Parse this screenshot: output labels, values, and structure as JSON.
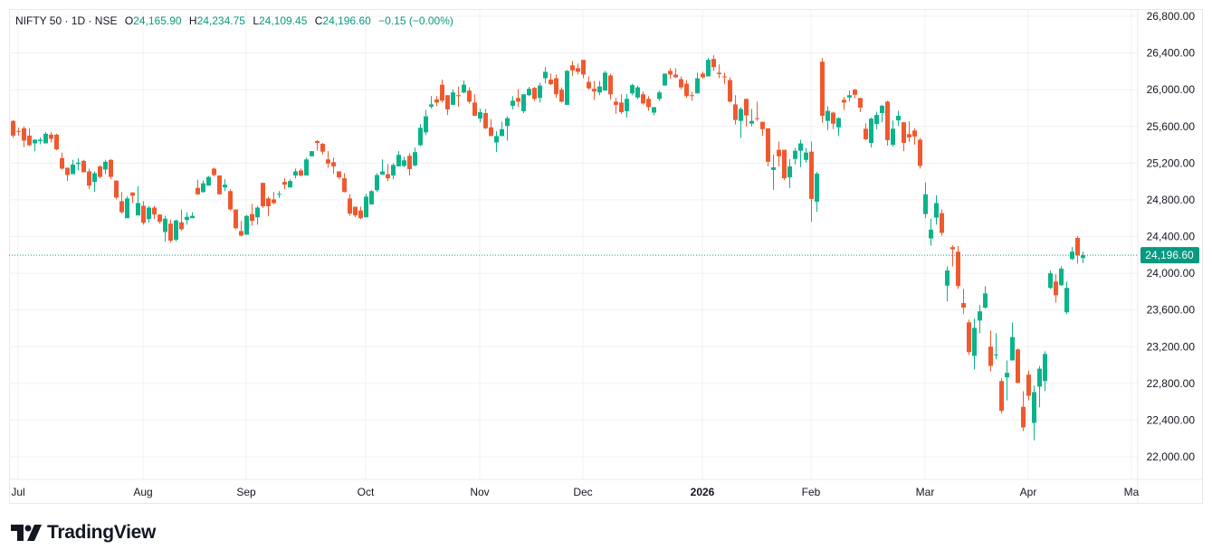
{
  "legend": {
    "symbol": "NIFTY 50 · 1D · NSE",
    "open_label": "O",
    "open": "24,165.90",
    "high_label": "H",
    "high": "24,234.75",
    "low_label": "L",
    "low": "24,109.45",
    "close_label": "C",
    "close": "24,196.60",
    "change": "−0.15 (−0.00%)"
  },
  "last_price_label": "24,196.60",
  "brand": "TradingView",
  "colors": {
    "up": "#0bb38a",
    "down": "#f0592f",
    "grid": "#f0f0f2",
    "text": "#131722"
  },
  "chart_data": {
    "type": "candlestick",
    "title": "NIFTY 50 · 1D · NSE",
    "ylim": [
      21900,
      26900
    ],
    "y_ticks": [
      "26,800.00",
      "26,400.00",
      "26,000.00",
      "25,600.00",
      "25,200.00",
      "24,800.00",
      "24,400.00",
      "24,000.00",
      "23,600.00",
      "23,200.00",
      "22,800.00",
      "22,400.00",
      "22,000.00"
    ],
    "y_tick_values": [
      26800,
      26400,
      26000,
      25600,
      25200,
      24800,
      24400,
      24000,
      23600,
      23200,
      22800,
      22400,
      22000
    ],
    "x_ticks": [
      {
        "label": "Jul",
        "bar": 1
      },
      {
        "label": "Aug",
        "bar": 24
      },
      {
        "label": "Sep",
        "bar": 43
      },
      {
        "label": "Oct",
        "bar": 65
      },
      {
        "label": "Nov",
        "bar": 86
      },
      {
        "label": "Dec",
        "bar": 105
      },
      {
        "label": "2026",
        "bar": 127
      },
      {
        "label": "Feb",
        "bar": 147
      },
      {
        "label": "Mar",
        "bar": 168
      },
      {
        "label": "Apr",
        "bar": 187
      },
      {
        "label": "Ma",
        "bar": 206
      }
    ],
    "last_price": 24196.6,
    "ohlc_fields": [
      "open",
      "high",
      "low",
      "close"
    ],
    "candles": [
      [
        25660,
        25670,
        25475,
        25500
      ],
      [
        25550,
        25585,
        25500,
        25545
      ],
      [
        25580,
        25600,
        25375,
        25445
      ],
      [
        25500,
        25580,
        25385,
        25395
      ],
      [
        25415,
        25460,
        25330,
        25455
      ],
      [
        25440,
        25480,
        25405,
        25455
      ],
      [
        25415,
        25540,
        25415,
        25520
      ],
      [
        25510,
        25540,
        25425,
        25465
      ],
      [
        25510,
        25520,
        25340,
        25350
      ],
      [
        25255,
        25315,
        25130,
        25140
      ],
      [
        25150,
        25150,
        25005,
        25070
      ],
      [
        25080,
        25235,
        25080,
        25185
      ],
      [
        25190,
        25255,
        25120,
        25205
      ],
      [
        25225,
        25235,
        25100,
        25100
      ],
      [
        25110,
        25140,
        24915,
        24955
      ],
      [
        24995,
        25110,
        24885,
        25090
      ],
      [
        25165,
        25175,
        25035,
        25050
      ],
      [
        25130,
        25235,
        25080,
        25215
      ],
      [
        25235,
        25245,
        25025,
        25050
      ],
      [
        25010,
        25010,
        24805,
        24825
      ],
      [
        24785,
        24885,
        24650,
        24665
      ],
      [
        24600,
        24840,
        24600,
        24815
      ],
      [
        24880,
        24880,
        24765,
        24845
      ],
      [
        24630,
        24950,
        24630,
        24765
      ],
      [
        24735,
        24785,
        24530,
        24550
      ],
      [
        24590,
        24735,
        24550,
        24715
      ],
      [
        24715,
        24735,
        24590,
        24640
      ],
      [
        24640,
        24640,
        24540,
        24560
      ],
      [
        24450,
        24625,
        24345,
        24595
      ],
      [
        24540,
        24585,
        24335,
        24355
      ],
      [
        24365,
        24585,
        24345,
        24575
      ],
      [
        24555,
        24695,
        24460,
        24480
      ],
      [
        24580,
        24665,
        24530,
        24615
      ],
      [
        24600,
        24665,
        24600,
        24625
      ],
      [
        24930,
        25020,
        24855,
        24860
      ],
      [
        24885,
        25010,
        24875,
        24980
      ],
      [
        24955,
        25060,
        24955,
        25050
      ],
      [
        25140,
        25150,
        25055,
        25070
      ],
      [
        25065,
        25065,
        24860,
        24860
      ],
      [
        24935,
        25025,
        24895,
        24965
      ],
      [
        24895,
        24915,
        24685,
        24695
      ],
      [
        24695,
        24695,
        24480,
        24490
      ],
      [
        24460,
        24570,
        24400,
        24410
      ],
      [
        24420,
        24635,
        24420,
        24625
      ],
      [
        24645,
        24755,
        24520,
        24570
      ],
      [
        24610,
        24735,
        24530,
        24715
      ],
      [
        24985,
        24985,
        24710,
        24730
      ],
      [
        24815,
        24835,
        24620,
        24730
      ],
      [
        24805,
        24885,
        24750,
        24765
      ],
      [
        24860,
        24895,
        24820,
        24865
      ],
      [
        24995,
        25035,
        24915,
        24965
      ],
      [
        24935,
        25025,
        24935,
        25005
      ],
      [
        25065,
        25140,
        25035,
        25110
      ],
      [
        25120,
        25140,
        25055,
        25065
      ],
      [
        25065,
        25260,
        25065,
        25240
      ],
      [
        25275,
        25330,
        25275,
        25330
      ],
      [
        25440,
        25450,
        25335,
        25420
      ],
      [
        25410,
        25420,
        25295,
        25325
      ],
      [
        25240,
        25330,
        25150,
        25195
      ],
      [
        25210,
        25260,
        25085,
        25165
      ],
      [
        25110,
        25110,
        25025,
        25045
      ],
      [
        25035,
        25090,
        24880,
        24885
      ],
      [
        24815,
        24865,
        24625,
        24650
      ],
      [
        24725,
        24725,
        24610,
        24630
      ],
      [
        24685,
        24725,
        24590,
        24600
      ],
      [
        24610,
        24865,
        24610,
        24835
      ],
      [
        24750,
        24905,
        24750,
        24895
      ],
      [
        24905,
        25090,
        24885,
        25070
      ],
      [
        25075,
        25240,
        25075,
        25110
      ],
      [
        25080,
        25190,
        25005,
        25035
      ],
      [
        25065,
        25200,
        25025,
        25180
      ],
      [
        25165,
        25330,
        25165,
        25290
      ],
      [
        25170,
        25270,
        25155,
        25230
      ],
      [
        25280,
        25310,
        25065,
        25135
      ],
      [
        25175,
        25370,
        25165,
        25320
      ],
      [
        25395,
        25625,
        25385,
        25585
      ],
      [
        25535,
        25780,
        25505,
        25710
      ],
      [
        25815,
        25930,
        25795,
        25840
      ],
      [
        25895,
        25930,
        25820,
        25860
      ],
      [
        26055,
        26110,
        25860,
        25880
      ],
      [
        25940,
        25940,
        25725,
        25785
      ],
      [
        25835,
        26005,
        25835,
        25970
      ],
      [
        25940,
        26035,
        25815,
        25930
      ],
      [
        25970,
        26100,
        25960,
        26055
      ],
      [
        25990,
        26025,
        25850,
        25870
      ],
      [
        25860,
        25950,
        25715,
        25715
      ],
      [
        25685,
        25795,
        25645,
        25755
      ],
      [
        25745,
        25790,
        25570,
        25580
      ],
      [
        25590,
        25680,
        25495,
        25495
      ],
      [
        25425,
        25550,
        25320,
        25495
      ],
      [
        25495,
        25650,
        25495,
        25570
      ],
      [
        25605,
        25710,
        25445,
        25690
      ],
      [
        25825,
        25930,
        25785,
        25880
      ],
      [
        25910,
        26005,
        25815,
        25870
      ],
      [
        25765,
        25950,
        25745,
        25950
      ],
      [
        25940,
        26030,
        25930,
        26010
      ],
      [
        26020,
        26030,
        25880,
        25900
      ],
      [
        25910,
        26075,
        25860,
        26045
      ],
      [
        26125,
        26245,
        26070,
        26195
      ],
      [
        26110,
        26175,
        26050,
        26060
      ],
      [
        26125,
        26165,
        25910,
        25950
      ],
      [
        26000,
        26025,
        25860,
        25870
      ],
      [
        25835,
        26215,
        25835,
        26205
      ],
      [
        26265,
        26315,
        26150,
        26210
      ],
      [
        26235,
        26285,
        26165,
        26195
      ],
      [
        26325,
        26325,
        26125,
        26165
      ],
      [
        26085,
        26145,
        26000,
        26015
      ],
      [
        26010,
        26095,
        25890,
        25980
      ],
      [
        25970,
        26095,
        25940,
        26035
      ],
      [
        25990,
        26205,
        25990,
        26185
      ],
      [
        26155,
        26175,
        25890,
        25950
      ],
      [
        25870,
        25910,
        25735,
        25835
      ],
      [
        25860,
        25950,
        25735,
        25755
      ],
      [
        25765,
        25950,
        25695,
        25900
      ],
      [
        25960,
        26065,
        25940,
        26050
      ],
      [
        25915,
        26045,
        25900,
        26025
      ],
      [
        25950,
        25980,
        25835,
        25850
      ],
      [
        25900,
        25930,
        25770,
        25810
      ],
      [
        25750,
        25810,
        25720,
        25810
      ],
      [
        25900,
        25990,
        25880,
        25970
      ],
      [
        26045,
        26175,
        26045,
        26175
      ],
      [
        26205,
        26235,
        26120,
        26165
      ],
      [
        26165,
        26235,
        26125,
        26135
      ],
      [
        26115,
        26145,
        26005,
        26025
      ],
      [
        26065,
        26105,
        25910,
        25930
      ],
      [
        25940,
        25980,
        25880,
        25930
      ],
      [
        25960,
        26185,
        25960,
        26125
      ],
      [
        26175,
        26195,
        26120,
        26135
      ],
      [
        26145,
        26345,
        26145,
        26325
      ],
      [
        26335,
        26375,
        26205,
        26245
      ],
      [
        26185,
        26275,
        26125,
        26170
      ],
      [
        26145,
        26185,
        26065,
        26140
      ],
      [
        26105,
        26135,
        25860,
        25870
      ],
      [
        25840,
        25940,
        25620,
        25670
      ],
      [
        25660,
        25810,
        25475,
        25790
      ],
      [
        25900,
        25900,
        25600,
        25720
      ],
      [
        25630,
        25790,
        25600,
        25660
      ],
      [
        25690,
        25870,
        25660,
        25680
      ],
      [
        25650,
        25650,
        25495,
        25570
      ],
      [
        25580,
        25580,
        25165,
        25215
      ],
      [
        25125,
        25295,
        24910,
        25155
      ],
      [
        25345,
        25435,
        25165,
        25275
      ],
      [
        25345,
        25345,
        25015,
        25035
      ],
      [
        25045,
        25245,
        24930,
        25165
      ],
      [
        25245,
        25365,
        25185,
        25335
      ],
      [
        25335,
        25455,
        25155,
        25415
      ],
      [
        25235,
        25365,
        25205,
        25315
      ],
      [
        25325,
        25435,
        24560,
        24810
      ],
      [
        24780,
        25105,
        24670,
        25085
      ],
      [
        26305,
        26345,
        25640,
        25715
      ],
      [
        25660,
        25820,
        25560,
        25770
      ],
      [
        25750,
        25760,
        25570,
        25630
      ],
      [
        25590,
        25700,
        25495,
        25690
      ],
      [
        25890,
        25920,
        25780,
        25860
      ],
      [
        25915,
        25990,
        25875,
        25940
      ],
      [
        26000,
        26010,
        25905,
        25945
      ],
      [
        25910,
        25910,
        25755,
        25805
      ],
      [
        25575,
        25635,
        25450,
        25460
      ],
      [
        25420,
        25695,
        25370,
        25685
      ],
      [
        25625,
        25760,
        25570,
        25725
      ],
      [
        25745,
        25835,
        25645,
        25825
      ],
      [
        25870,
        25880,
        25390,
        25450
      ],
      [
        25400,
        25665,
        25380,
        25575
      ],
      [
        25665,
        25770,
        25605,
        25715
      ],
      [
        25645,
        25645,
        25330,
        25420
      ],
      [
        25515,
        25655,
        25430,
        25480
      ],
      [
        25555,
        25580,
        25400,
        25490
      ],
      [
        25455,
        25475,
        25140,
        25170
      ],
      [
        24645,
        24990,
        24600,
        24860
      ],
      [
        24380,
        24595,
        24300,
        24475
      ],
      [
        24605,
        24850,
        24530,
        24765
      ],
      [
        24655,
        24695,
        24410,
        24440
      ],
      [
        23865,
        24075,
        23695,
        24030
      ],
      [
        24285,
        24305,
        24075,
        24260
      ],
      [
        24235,
        24295,
        23830,
        23860
      ],
      [
        23675,
        23830,
        23555,
        23625
      ],
      [
        23465,
        23495,
        23110,
        23140
      ],
      [
        23100,
        23505,
        22950,
        23405
      ],
      [
        23485,
        23655,
        23345,
        23585
      ],
      [
        23625,
        23860,
        23615,
        23780
      ],
      [
        23200,
        23375,
        22930,
        22990
      ],
      [
        23105,
        23345,
        23060,
        23115
      ],
      [
        22825,
        22855,
        22470,
        22500
      ],
      [
        22865,
        23050,
        22615,
        22915
      ],
      [
        23050,
        23465,
        23050,
        23305
      ],
      [
        23170,
        23180,
        22805,
        22805
      ],
      [
        22545,
        22715,
        22280,
        22320
      ],
      [
        22895,
        22940,
        22615,
        22665
      ],
      [
        22370,
        22775,
        22180,
        22705
      ],
      [
        22765,
        22990,
        22540,
        22960
      ],
      [
        22825,
        23150,
        22715,
        23120
      ],
      [
        23840,
        24030,
        23830,
        24000
      ],
      [
        23910,
        23990,
        23680,
        23760
      ],
      [
        23870,
        24075,
        23860,
        24050
      ],
      [
        23575,
        23910,
        23555,
        23840
      ],
      [
        24155,
        24285,
        24145,
        24235
      ],
      [
        24385,
        24405,
        24105,
        24195
      ],
      [
        24165.9,
        24234.75,
        24109.45,
        24196.6
      ]
    ]
  }
}
